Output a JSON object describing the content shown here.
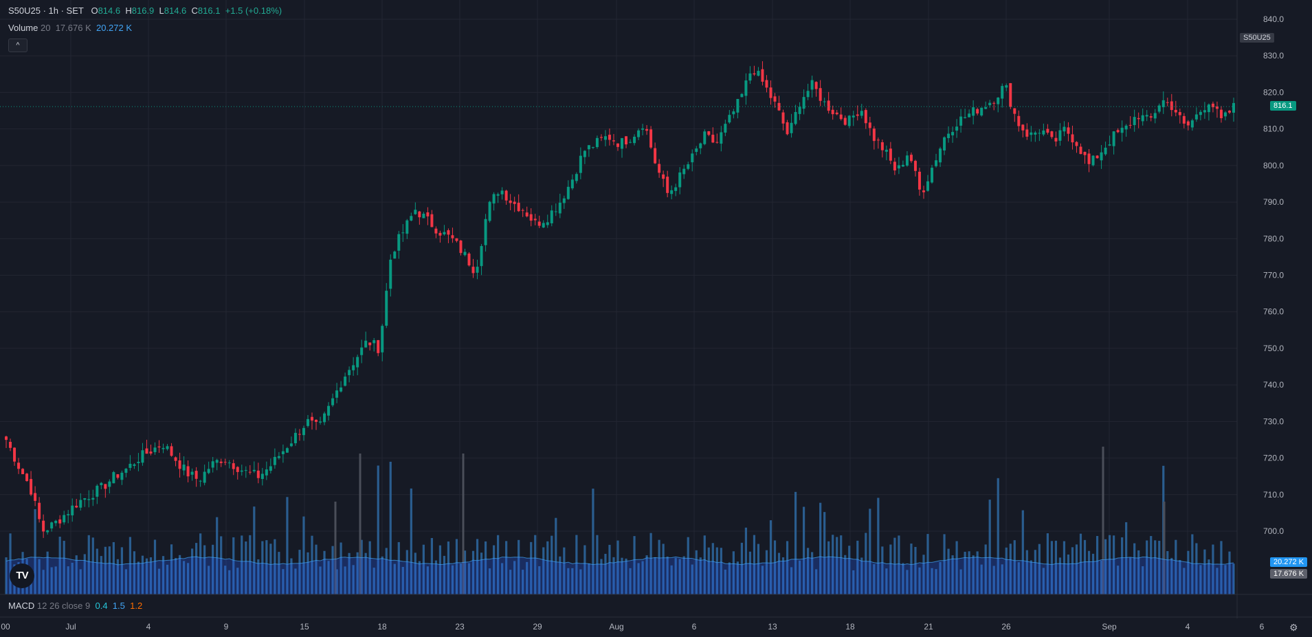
{
  "header": {
    "symbol": "S50U25 · 1h · SET",
    "o_label": "O",
    "o_value": "814.6",
    "h_label": "H",
    "h_value": "816.9",
    "l_label": "L",
    "l_value": "814.6",
    "c_label": "C",
    "c_value": "816.1",
    "change": "+1.5 (+0.18%)"
  },
  "volume_legend": {
    "label": "Volume",
    "length": "20",
    "value1": "17.676 K",
    "value2": "20.272 K"
  },
  "collapse_label": "^",
  "macd_legend": {
    "label": "MACD",
    "params": "12 26 close 9",
    "v1": "0.4",
    "v2": "1.5",
    "v3": "1.2"
  },
  "logo_text": "TV",
  "tags": {
    "symbol": "S50U25",
    "last_price": "816.1",
    "vol_ma": "20.272 K",
    "vol": "17.676 K"
  },
  "settings_icon": "gear-icon",
  "colors": {
    "up": "#089981",
    "down": "#f23645",
    "volume": "#2a5d8f",
    "volume_ma": "#2962ff",
    "background": "#161a25",
    "grid": "#232632"
  },
  "chart_data": {
    "type": "candlestick",
    "interval": "1h",
    "y_ticks": [
      "840.0",
      "830.0",
      "820.0",
      "810.0",
      "800.0",
      "790.0",
      "780.0",
      "770.0",
      "760.0",
      "750.0",
      "740.0",
      "730.0",
      "720.0",
      "710.0",
      "700.0"
    ],
    "ylim": [
      691,
      843
    ],
    "x_ticks": [
      "00",
      "Jul",
      "4",
      "9",
      "15",
      "18",
      "23",
      "29",
      "Aug",
      "6",
      "13",
      "18",
      "21",
      "26",
      "Sep",
      "4",
      "6"
    ],
    "last_price": 816.1,
    "close_path": [
      725,
      718,
      712,
      700,
      702,
      705,
      708,
      710,
      712,
      715,
      717,
      720,
      722,
      724,
      720,
      716,
      714,
      718,
      720,
      718,
      716,
      715,
      718,
      722,
      726,
      730,
      728,
      735,
      742,
      747,
      752,
      750,
      776,
      782,
      788,
      785,
      782,
      780,
      776,
      771,
      788,
      794,
      790,
      788,
      784,
      786,
      790,
      796,
      804,
      806,
      808,
      806,
      808,
      812,
      800,
      792,
      797,
      802,
      808,
      806,
      812,
      818,
      827,
      822,
      816,
      808,
      818,
      822,
      817,
      814,
      812,
      816,
      808,
      804,
      798,
      804,
      792,
      800,
      808,
      812,
      814,
      816,
      818,
      822,
      812,
      808,
      810,
      806,
      810,
      806,
      800,
      804,
      808,
      810,
      814,
      812,
      818,
      816,
      810,
      814,
      818,
      812,
      816
    ]
  }
}
